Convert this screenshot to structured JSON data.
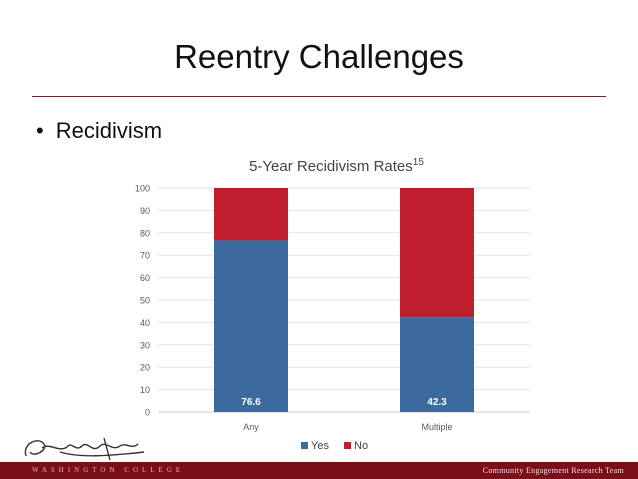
{
  "slide": {
    "title": "Reentry Challenges",
    "bullet_text": "Recidivism",
    "footer_text": "Community Engagement Research Team",
    "college_text": "WASHINGTON COLLEGE"
  },
  "chart_data": {
    "type": "bar",
    "stacked": true,
    "title": "5-Year Recidivism Rates",
    "title_superscript": "15",
    "categories": [
      "Any",
      "Multiple"
    ],
    "series": [
      {
        "name": "Yes",
        "values": [
          76.6,
          42.3
        ],
        "color": "#3d6a9e"
      },
      {
        "name": "No",
        "values": [
          23.4,
          57.7
        ],
        "color": "#be1e2d"
      }
    ],
    "data_labels": [
      "76.6",
      "42.3"
    ],
    "ylim": [
      0,
      100
    ],
    "yticks": [
      0,
      10,
      20,
      30,
      40,
      50,
      60,
      70,
      80,
      90,
      100
    ],
    "grid": true,
    "legend_position": "bottom"
  },
  "colors": {
    "accent": "#7a0f1a",
    "yes": "#3d6a9e",
    "no": "#be1e2d"
  }
}
